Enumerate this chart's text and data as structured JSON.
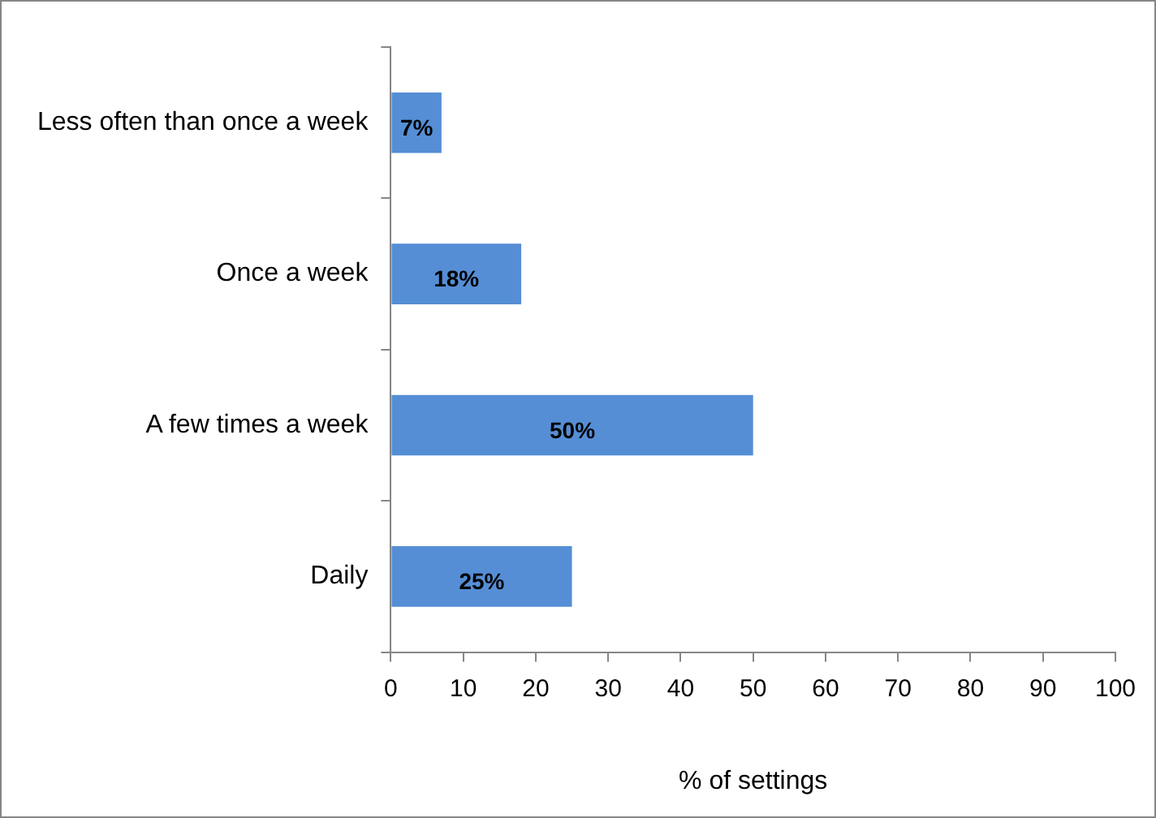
{
  "chart_data": {
    "type": "bar",
    "orientation": "horizontal",
    "xlabel": "% of settings",
    "categories": [
      "Less often than once a week",
      "Once a week",
      "A few times a week",
      "Daily"
    ],
    "values": [
      7,
      18,
      50,
      25
    ],
    "value_labels": [
      "7%",
      "18%",
      "50%",
      "25%"
    ],
    "color": "#558ed5",
    "xlim": [
      0,
      100
    ],
    "xticks": [
      0,
      10,
      20,
      30,
      40,
      50,
      60,
      70,
      80,
      90,
      100
    ],
    "grid": false,
    "legend": false
  }
}
